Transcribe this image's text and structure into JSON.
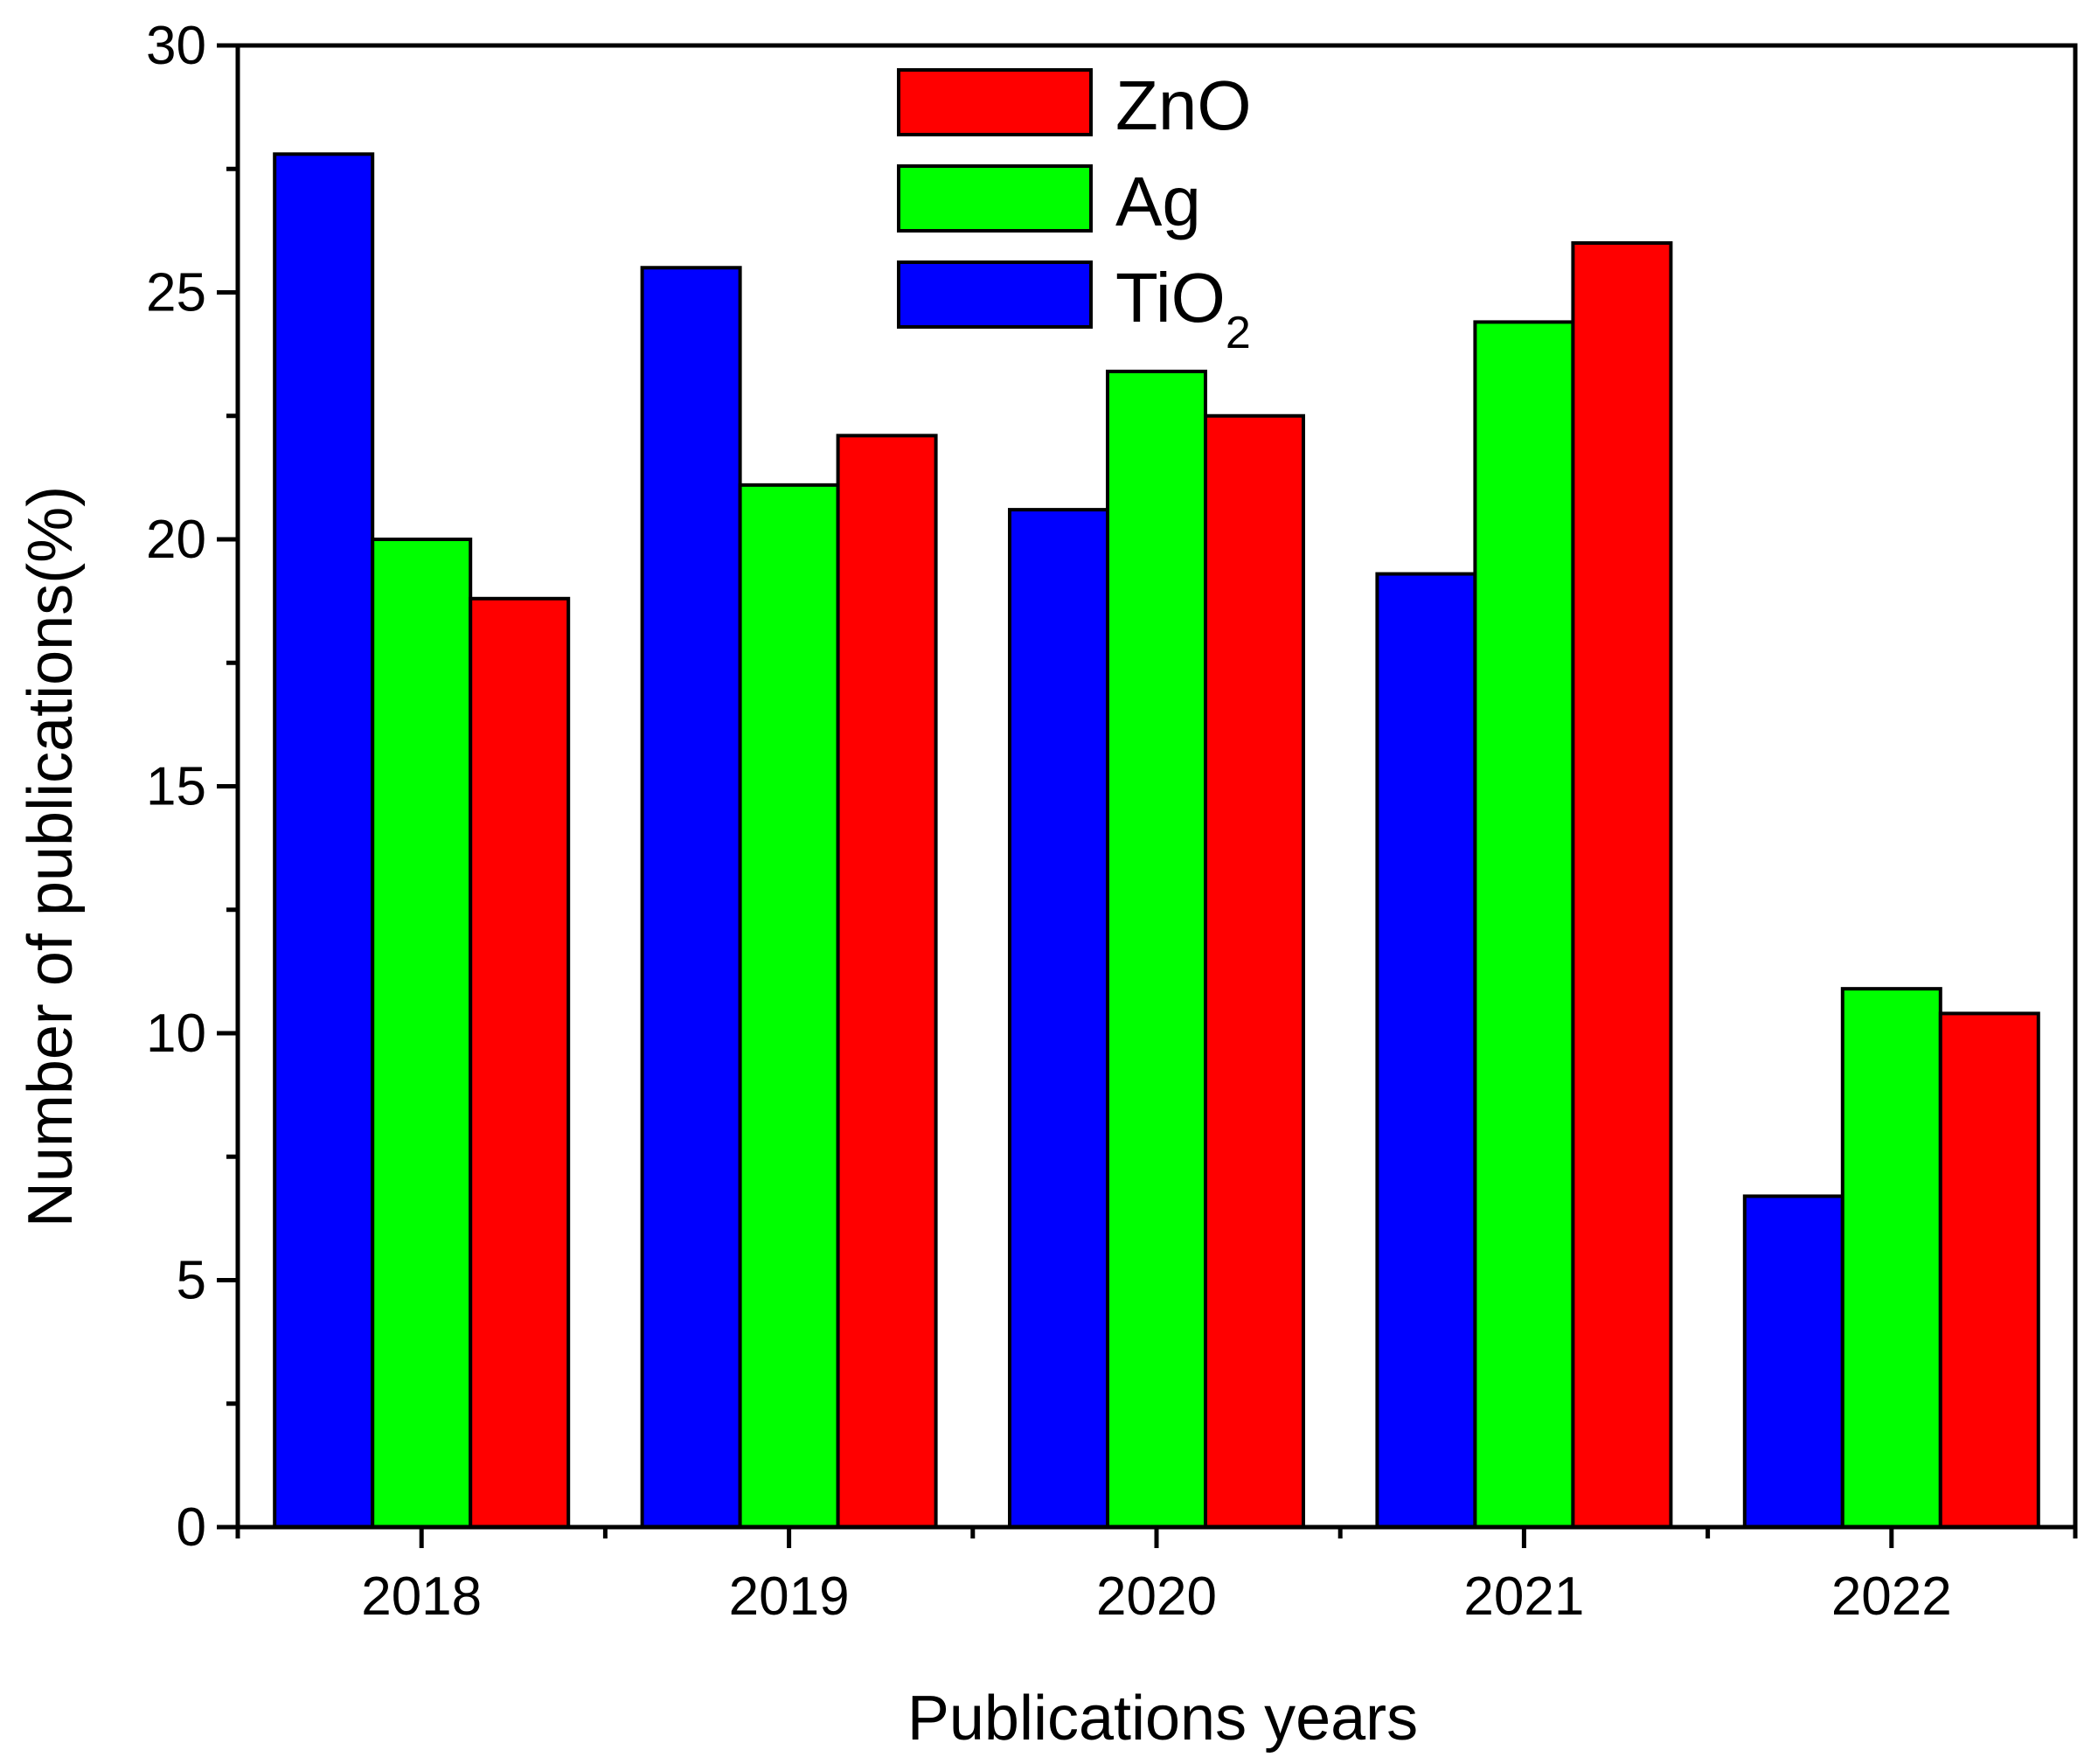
{
  "chart_data": {
    "type": "bar",
    "title": "",
    "xlabel": "Publications years",
    "ylabel": "Number of publications(%)",
    "categories": [
      "2018",
      "2019",
      "2020",
      "2021",
      "2022"
    ],
    "ylim": [
      0,
      30
    ],
    "yticks": [
      0,
      5,
      10,
      15,
      20,
      25,
      30
    ],
    "ytick_labels": [
      "0",
      "5",
      "10",
      "15",
      "20",
      "25",
      "30"
    ],
    "grid": false,
    "legend_position": "top-center",
    "series": [
      {
        "name": "TiO2",
        "label_main": "TiO",
        "label_sub": "2",
        "color": "#0000ff",
        "values": [
          27.8,
          25.5,
          20.6,
          19.3,
          6.7
        ]
      },
      {
        "name": "Ag",
        "label_main": "Ag",
        "label_sub": "",
        "color": "#00ff00",
        "values": [
          20.0,
          21.1,
          23.4,
          24.4,
          10.9
        ]
      },
      {
        "name": "ZnO",
        "label_main": "ZnO",
        "label_sub": "",
        "color": "#ff0000",
        "values": [
          18.8,
          22.1,
          22.5,
          26.0,
          10.4
        ]
      }
    ],
    "legend_order": [
      "ZnO",
      "Ag",
      "TiO2"
    ]
  }
}
